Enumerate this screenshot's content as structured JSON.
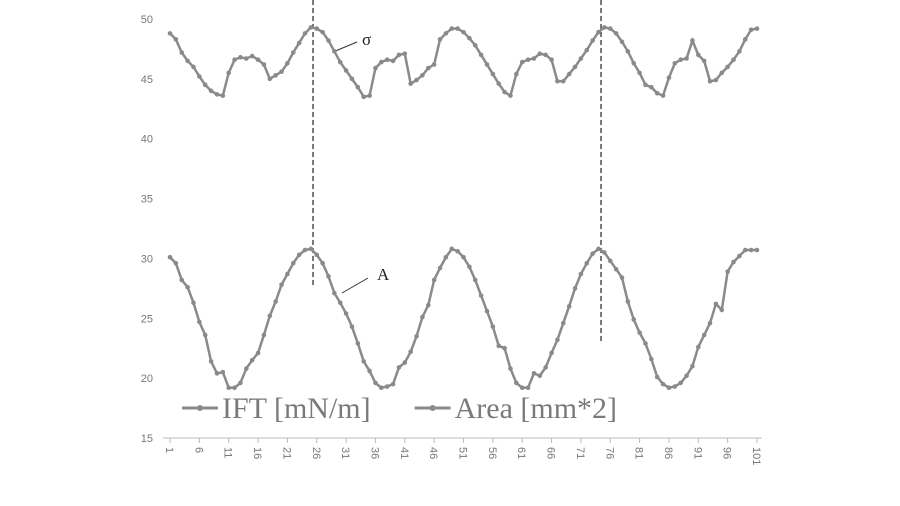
{
  "chart_data": {
    "type": "line",
    "x": [
      1,
      2,
      3,
      4,
      5,
      6,
      7,
      8,
      9,
      10,
      11,
      12,
      13,
      14,
      15,
      16,
      17,
      18,
      19,
      20,
      21,
      22,
      23,
      24,
      25,
      26,
      27,
      28,
      29,
      30,
      31,
      32,
      33,
      34,
      35,
      36,
      37,
      38,
      39,
      40,
      41,
      42,
      43,
      44,
      45,
      46,
      47,
      48,
      49,
      50,
      51,
      52,
      53,
      54,
      55,
      56,
      57,
      58,
      59,
      60,
      61,
      62,
      63,
      64,
      65,
      66,
      67,
      68,
      69,
      70,
      71,
      72,
      73,
      74,
      75,
      76,
      77,
      78,
      79,
      80,
      81,
      82,
      83,
      84,
      85,
      86,
      87,
      88,
      89,
      90,
      91,
      92,
      93,
      94,
      95,
      96,
      97,
      98,
      99,
      100,
      101
    ],
    "series": [
      {
        "name": "IFT [mN/m]",
        "color": "#8a8a8a",
        "values": [
          48.8,
          48.3,
          47.2,
          46.5,
          46.0,
          45.2,
          44.5,
          44.0,
          43.7,
          43.6,
          45.5,
          46.6,
          46.8,
          46.7,
          46.9,
          46.6,
          46.2,
          45.0,
          45.3,
          45.6,
          46.3,
          47.2,
          48.0,
          48.8,
          49.3,
          49.2,
          48.9,
          48.2,
          47.3,
          46.4,
          45.7,
          45.0,
          44.3,
          43.5,
          43.6,
          45.9,
          46.4,
          46.6,
          46.5,
          47.0,
          47.1,
          44.6,
          44.9,
          45.3,
          45.9,
          46.2,
          48.3,
          48.8,
          49.2,
          49.2,
          48.9,
          48.4,
          47.8,
          47.0,
          46.2,
          45.4,
          44.6,
          43.9,
          43.6,
          45.4,
          46.4,
          46.6,
          46.7,
          47.1,
          47.0,
          46.6,
          44.8,
          44.8,
          45.4,
          46.0,
          46.7,
          47.4,
          48.2,
          48.9,
          49.3,
          49.2,
          48.8,
          48.1,
          47.3,
          46.3,
          45.5,
          44.5,
          44.3,
          43.8,
          43.6,
          45.1,
          46.3,
          46.6,
          46.7,
          48.2,
          47.0,
          46.5,
          44.8,
          44.9,
          45.5,
          46.0,
          46.6,
          47.3,
          48.3,
          49.1,
          49.2
        ]
      },
      {
        "name": "Area [mm*2]",
        "color": "#8a8a8a",
        "values": [
          30.1,
          29.6,
          28.2,
          27.6,
          26.3,
          24.7,
          23.6,
          21.4,
          20.4,
          20.5,
          19.2,
          19.2,
          19.6,
          20.8,
          21.5,
          22.1,
          23.6,
          25.2,
          26.4,
          27.8,
          28.7,
          29.6,
          30.3,
          30.7,
          30.8,
          30.3,
          29.6,
          28.5,
          27.1,
          26.3,
          25.4,
          24.3,
          22.9,
          21.4,
          20.6,
          19.6,
          19.2,
          19.3,
          19.5,
          20.9,
          21.3,
          22.2,
          23.5,
          25.1,
          26.1,
          28.2,
          29.2,
          30.1,
          30.8,
          30.6,
          30.1,
          29.3,
          28.2,
          26.9,
          25.6,
          24.3,
          22.7,
          22.5,
          20.8,
          19.6,
          19.2,
          19.2,
          20.4,
          20.2,
          20.9,
          22.1,
          23.2,
          24.6,
          26.0,
          27.5,
          28.7,
          29.6,
          30.4,
          30.8,
          30.5,
          29.8,
          29.1,
          28.4,
          26.4,
          24.9,
          23.8,
          22.9,
          21.6,
          20.1,
          19.5,
          19.2,
          19.3,
          19.6,
          20.2,
          21.0,
          22.6,
          23.6,
          24.6,
          26.2,
          25.7,
          28.9,
          29.7,
          30.2,
          30.7,
          30.7,
          30.7
        ]
      }
    ],
    "xlim": [
      1,
      101
    ],
    "xticks": [
      1,
      6,
      11,
      16,
      21,
      26,
      31,
      36,
      41,
      46,
      51,
      56,
      61,
      66,
      71,
      76,
      81,
      86,
      91,
      96,
      101
    ],
    "ylim": [
      15,
      50
    ],
    "yticks": [
      15,
      20,
      25,
      30,
      35,
      40,
      45,
      50
    ],
    "legend": "bottom",
    "annotations": [
      {
        "text": "σ"
      },
      {
        "text": "A"
      }
    ]
  }
}
